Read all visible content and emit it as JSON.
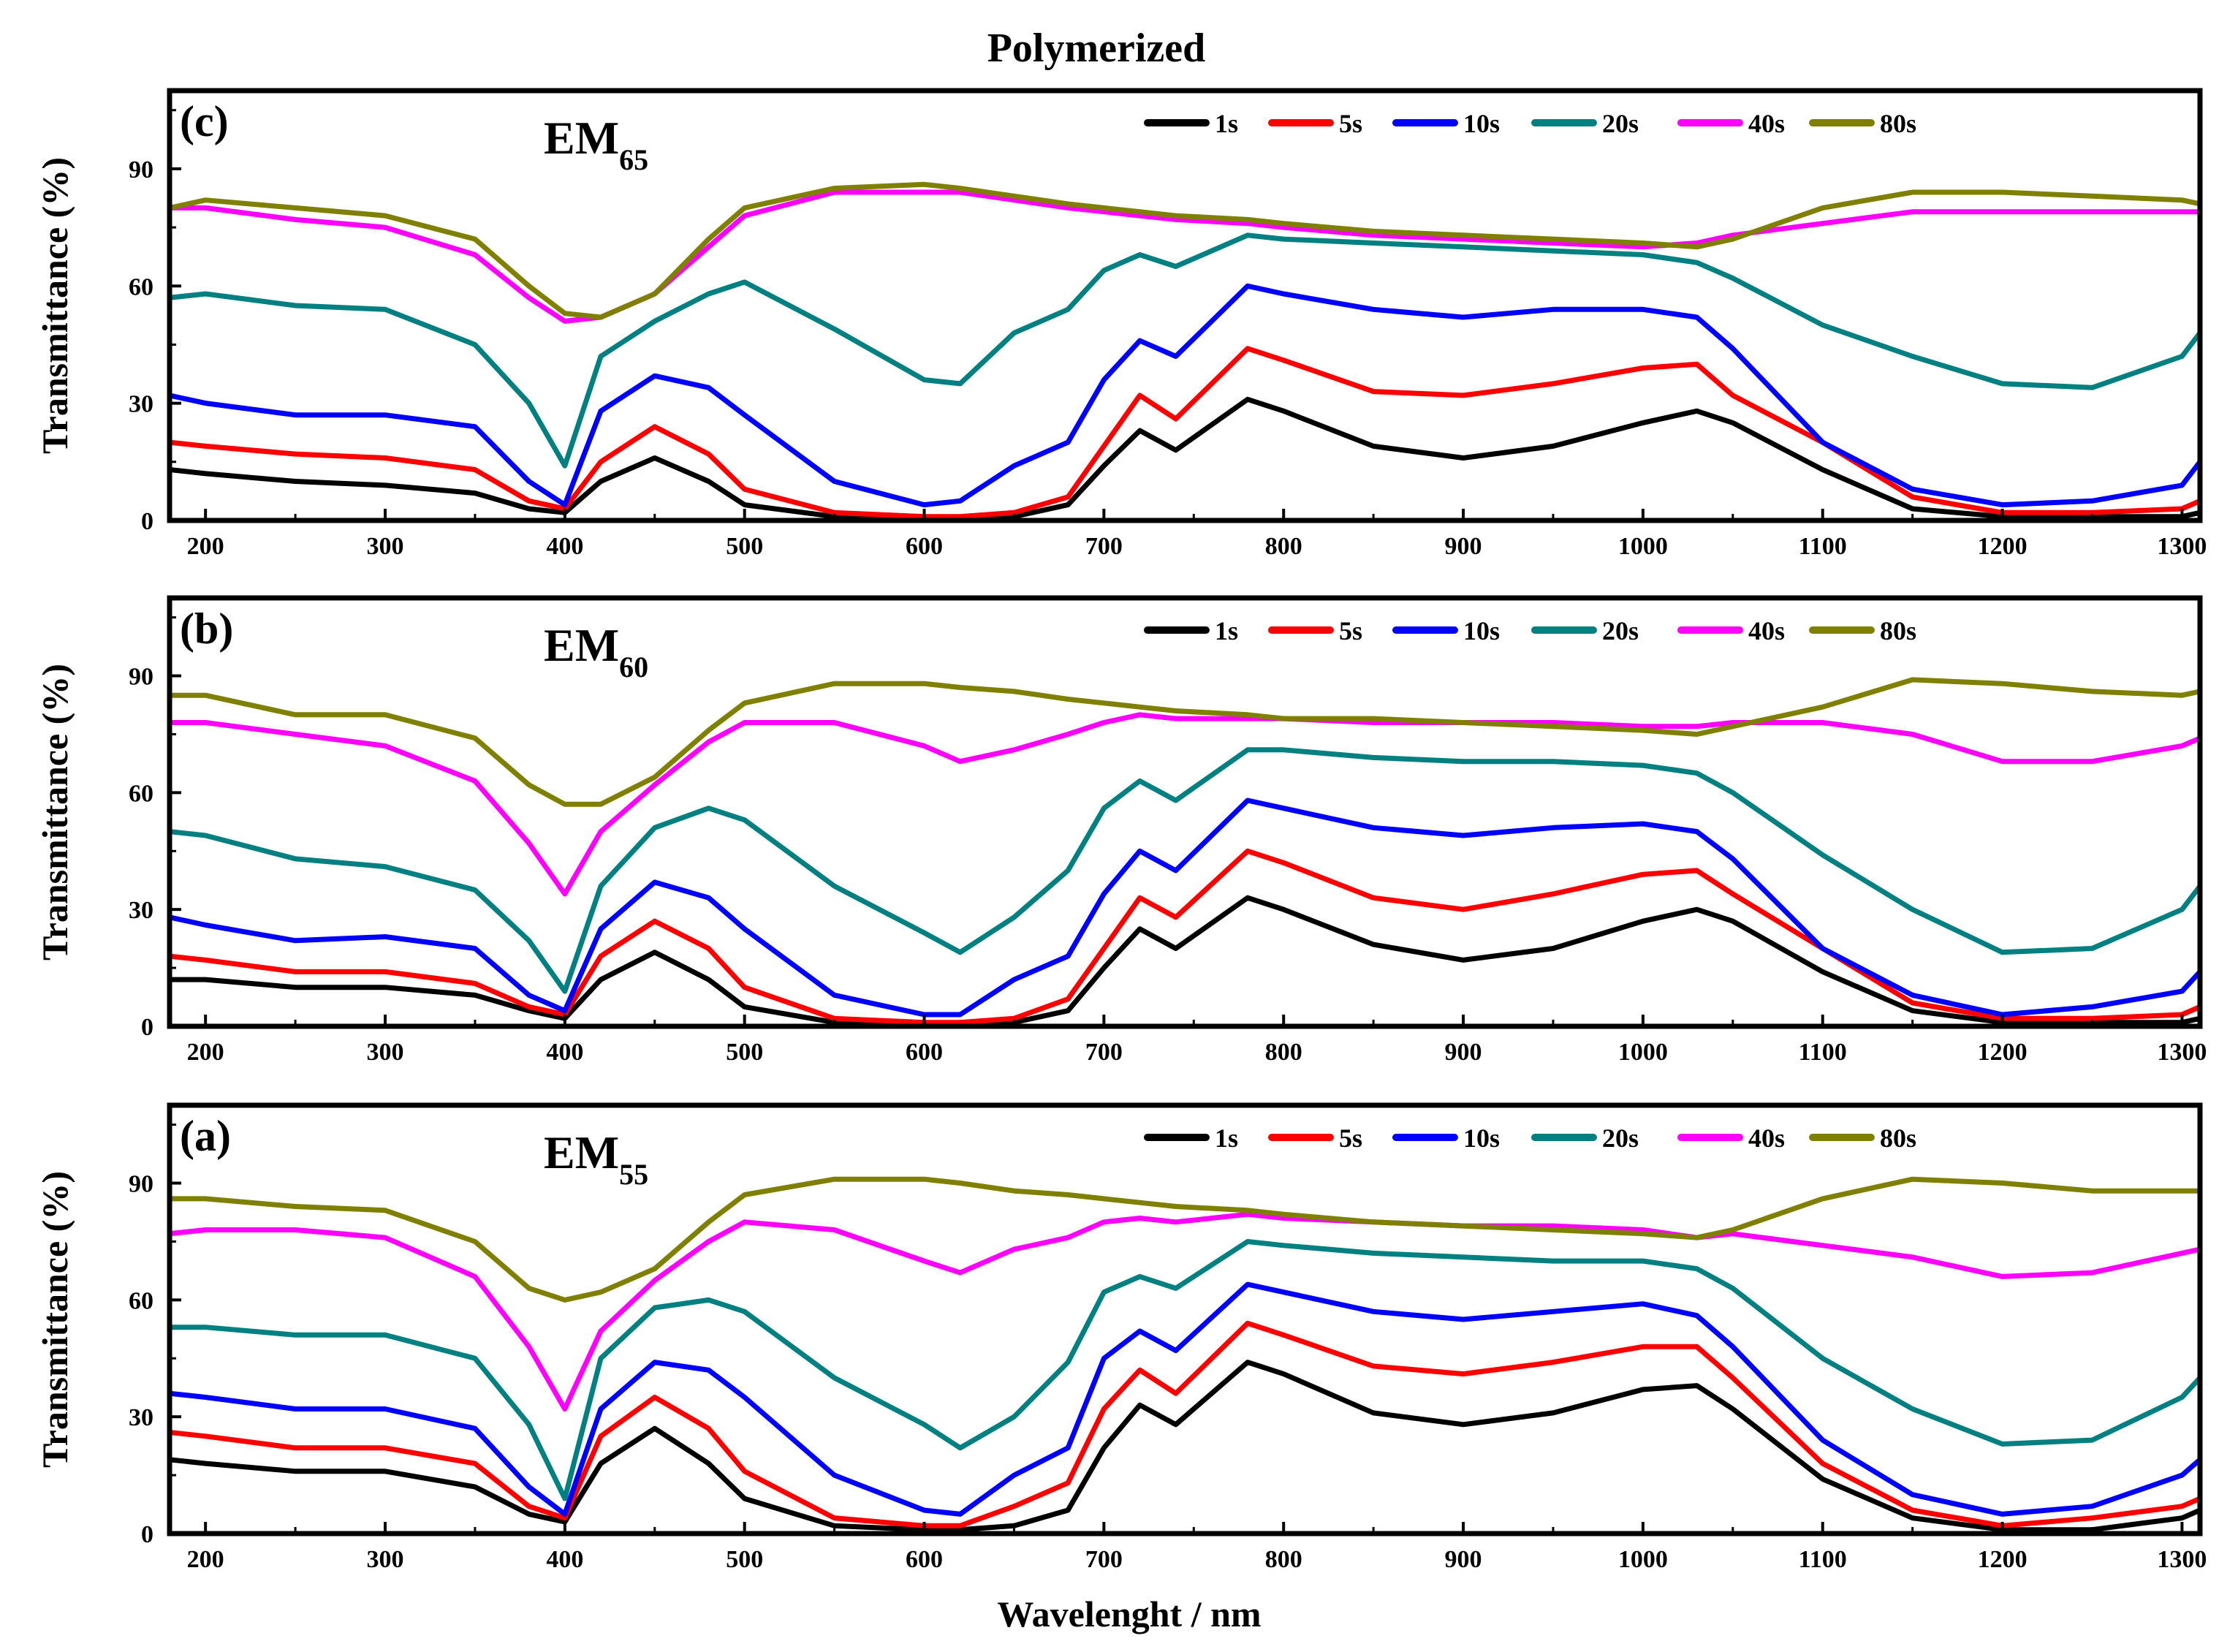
{
  "figure": {
    "title": "Polymerized",
    "xlabel": "Wavelenght / nm",
    "ylabel": "Transmittance (%)"
  },
  "legend": [
    "1s",
    "5s",
    "10s",
    "20s",
    "40s",
    "80s"
  ],
  "series_colors": {
    "1s": "#000000",
    "5s": "#ff0000",
    "10s": "#0000ff",
    "20s": "#008080",
    "40s": "#ff00ff",
    "80s": "#808000"
  },
  "chart_data": [
    {
      "type": "line",
      "panel_label": "(c)",
      "sample_main": "EM",
      "sample_sub": "65",
      "xlim": [
        180,
        1310
      ],
      "ylim": [
        0,
        110
      ],
      "xticks": [
        200,
        300,
        400,
        500,
        600,
        700,
        800,
        900,
        1000,
        1100,
        1200,
        1300
      ],
      "yticks": [
        0,
        30,
        60,
        90
      ],
      "x": [
        180,
        200,
        250,
        300,
        350,
        380,
        400,
        420,
        450,
        480,
        500,
        550,
        600,
        620,
        650,
        680,
        700,
        720,
        740,
        780,
        800,
        850,
        900,
        950,
        1000,
        1030,
        1050,
        1100,
        1150,
        1200,
        1250,
        1300,
        1310
      ],
      "series": [
        {
          "name": "1s",
          "values": [
            13,
            12,
            10,
            9,
            7,
            3,
            2,
            10,
            16,
            10,
            4,
            1,
            0,
            0,
            1,
            4,
            14,
            23,
            18,
            31,
            28,
            19,
            16,
            19,
            25,
            28,
            25,
            13,
            3,
            1,
            1,
            1,
            2
          ]
        },
        {
          "name": "5s",
          "values": [
            20,
            19,
            17,
            16,
            13,
            5,
            3,
            15,
            24,
            17,
            8,
            2,
            1,
            1,
            2,
            6,
            19,
            32,
            26,
            44,
            41,
            33,
            32,
            35,
            39,
            40,
            32,
            20,
            6,
            2,
            2,
            3,
            5
          ]
        },
        {
          "name": "10s",
          "values": [
            32,
            30,
            27,
            27,
            24,
            10,
            4,
            28,
            37,
            34,
            27,
            10,
            4,
            5,
            14,
            20,
            36,
            46,
            42,
            60,
            58,
            54,
            52,
            54,
            54,
            52,
            44,
            20,
            8,
            4,
            5,
            9,
            15
          ]
        },
        {
          "name": "20s",
          "values": [
            57,
            58,
            55,
            54,
            45,
            30,
            14,
            42,
            51,
            58,
            61,
            49,
            36,
            35,
            48,
            54,
            64,
            68,
            65,
            73,
            72,
            71,
            70,
            69,
            68,
            66,
            62,
            50,
            42,
            35,
            34,
            42,
            48
          ]
        },
        {
          "name": "40s",
          "values": [
            80,
            80,
            77,
            75,
            68,
            57,
            51,
            52,
            58,
            70,
            78,
            84,
            84,
            84,
            82,
            80,
            79,
            78,
            77,
            76,
            75,
            73,
            72,
            71,
            70,
            71,
            73,
            76,
            79,
            79,
            79,
            79,
            79
          ]
        },
        {
          "name": "80s",
          "values": [
            80,
            82,
            80,
            78,
            72,
            60,
            53,
            52,
            58,
            72,
            80,
            85,
            86,
            85,
            83,
            81,
            80,
            79,
            78,
            77,
            76,
            74,
            73,
            72,
            71,
            70,
            72,
            80,
            84,
            84,
            83,
            82,
            81
          ]
        }
      ]
    },
    {
      "type": "line",
      "panel_label": "(b)",
      "sample_main": "EM",
      "sample_sub": "60",
      "xlim": [
        180,
        1310
      ],
      "ylim": [
        0,
        110
      ],
      "xticks": [
        200,
        300,
        400,
        500,
        600,
        700,
        800,
        900,
        1000,
        1100,
        1200,
        1300
      ],
      "yticks": [
        0,
        30,
        60,
        90
      ],
      "x": [
        180,
        200,
        250,
        300,
        350,
        380,
        400,
        420,
        450,
        480,
        500,
        550,
        600,
        620,
        650,
        680,
        700,
        720,
        740,
        780,
        800,
        850,
        900,
        950,
        1000,
        1030,
        1050,
        1100,
        1150,
        1200,
        1250,
        1300,
        1310
      ],
      "series": [
        {
          "name": "1s",
          "values": [
            12,
            12,
            10,
            10,
            8,
            4,
            2,
            12,
            19,
            12,
            5,
            1,
            0,
            0,
            1,
            4,
            15,
            25,
            20,
            33,
            30,
            21,
            17,
            20,
            27,
            30,
            27,
            14,
            4,
            1,
            1,
            1,
            2
          ]
        },
        {
          "name": "5s",
          "values": [
            18,
            17,
            14,
            14,
            11,
            5,
            3,
            18,
            27,
            20,
            10,
            2,
            1,
            1,
            2,
            7,
            20,
            33,
            28,
            45,
            42,
            33,
            30,
            34,
            39,
            40,
            34,
            20,
            6,
            2,
            2,
            3,
            5
          ]
        },
        {
          "name": "10s",
          "values": [
            28,
            26,
            22,
            23,
            20,
            8,
            4,
            25,
            37,
            33,
            25,
            8,
            3,
            3,
            12,
            18,
            34,
            45,
            40,
            58,
            56,
            51,
            49,
            51,
            52,
            50,
            43,
            20,
            8,
            3,
            5,
            9,
            14
          ]
        },
        {
          "name": "20s",
          "values": [
            50,
            49,
            43,
            41,
            35,
            22,
            9,
            36,
            51,
            56,
            53,
            36,
            24,
            19,
            28,
            40,
            56,
            63,
            58,
            71,
            71,
            69,
            68,
            68,
            67,
            65,
            60,
            44,
            30,
            19,
            20,
            30,
            36
          ]
        },
        {
          "name": "40s",
          "values": [
            78,
            78,
            75,
            72,
            63,
            47,
            34,
            50,
            62,
            73,
            78,
            78,
            72,
            68,
            71,
            75,
            78,
            80,
            79,
            79,
            79,
            78,
            78,
            78,
            77,
            77,
            78,
            78,
            75,
            68,
            68,
            72,
            74
          ]
        },
        {
          "name": "80s",
          "values": [
            85,
            85,
            80,
            80,
            74,
            62,
            57,
            57,
            64,
            76,
            83,
            88,
            88,
            87,
            86,
            84,
            83,
            82,
            81,
            80,
            79,
            79,
            78,
            77,
            76,
            75,
            77,
            82,
            89,
            88,
            86,
            85,
            86
          ]
        }
      ]
    },
    {
      "type": "line",
      "panel_label": "(a)",
      "sample_main": "EM",
      "sample_sub": "55",
      "xlim": [
        180,
        1310
      ],
      "ylim": [
        0,
        110
      ],
      "xticks": [
        200,
        300,
        400,
        500,
        600,
        700,
        800,
        900,
        1000,
        1100,
        1200,
        1300
      ],
      "yticks": [
        0,
        30,
        60,
        90
      ],
      "x": [
        180,
        200,
        250,
        300,
        350,
        380,
        400,
        420,
        450,
        480,
        500,
        550,
        600,
        620,
        650,
        680,
        700,
        720,
        740,
        780,
        800,
        850,
        900,
        950,
        1000,
        1030,
        1050,
        1100,
        1150,
        1200,
        1250,
        1300,
        1310
      ],
      "series": [
        {
          "name": "1s",
          "values": [
            19,
            18,
            16,
            16,
            12,
            5,
            3,
            18,
            27,
            18,
            9,
            2,
            1,
            1,
            2,
            6,
            22,
            33,
            28,
            44,
            41,
            31,
            28,
            31,
            37,
            38,
            32,
            14,
            4,
            1,
            1,
            4,
            6
          ]
        },
        {
          "name": "5s",
          "values": [
            26,
            25,
            22,
            22,
            18,
            7,
            4,
            25,
            35,
            27,
            16,
            4,
            2,
            2,
            7,
            13,
            32,
            42,
            36,
            54,
            51,
            43,
            41,
            44,
            48,
            48,
            40,
            18,
            6,
            2,
            4,
            7,
            9
          ]
        },
        {
          "name": "10s",
          "values": [
            36,
            35,
            32,
            32,
            27,
            12,
            5,
            32,
            44,
            42,
            35,
            15,
            6,
            5,
            15,
            22,
            45,
            52,
            47,
            64,
            62,
            57,
            55,
            57,
            59,
            56,
            48,
            24,
            10,
            5,
            7,
            15,
            19
          ]
        },
        {
          "name": "20s",
          "values": [
            53,
            53,
            51,
            51,
            45,
            28,
            9,
            45,
            58,
            60,
            57,
            40,
            28,
            22,
            30,
            44,
            62,
            66,
            63,
            75,
            74,
            72,
            71,
            70,
            70,
            68,
            63,
            45,
            32,
            23,
            24,
            35,
            40
          ]
        },
        {
          "name": "40s",
          "values": [
            77,
            78,
            78,
            76,
            66,
            48,
            32,
            52,
            65,
            75,
            80,
            78,
            70,
            67,
            73,
            76,
            80,
            81,
            80,
            82,
            81,
            80,
            79,
            79,
            78,
            76,
            77,
            74,
            71,
            66,
            67,
            72,
            73
          ]
        },
        {
          "name": "80s",
          "values": [
            86,
            86,
            84,
            83,
            75,
            63,
            60,
            62,
            68,
            80,
            87,
            91,
            91,
            90,
            88,
            87,
            86,
            85,
            84,
            83,
            82,
            80,
            79,
            78,
            77,
            76,
            78,
            86,
            91,
            90,
            88,
            88,
            88
          ]
        }
      ]
    }
  ]
}
